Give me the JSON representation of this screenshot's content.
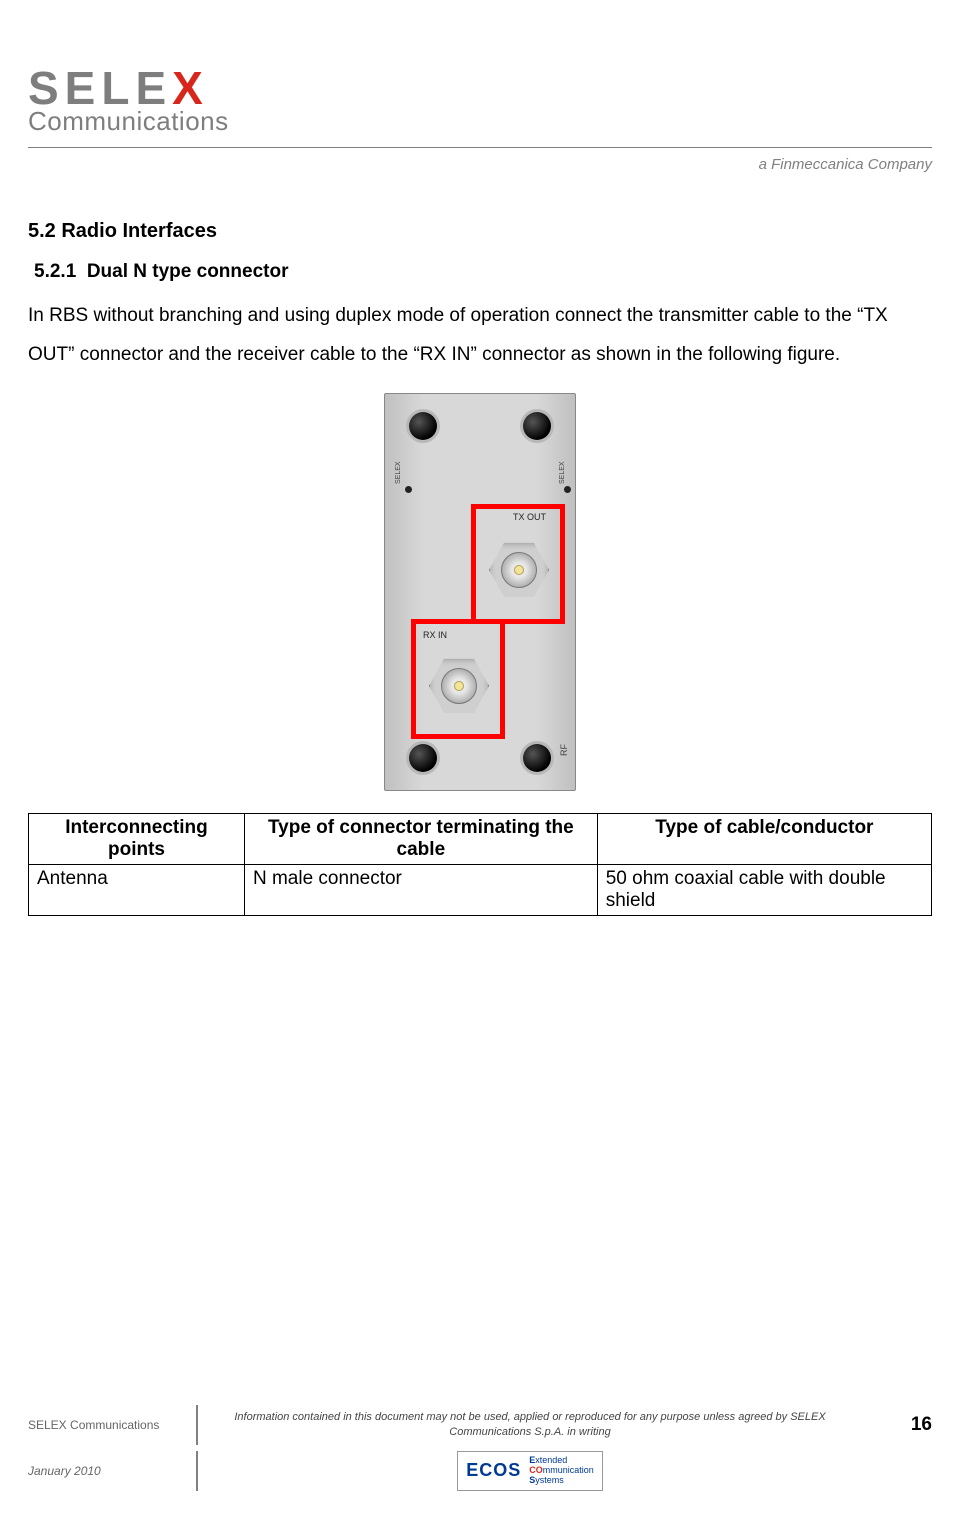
{
  "header": {
    "brand_main_pre": "SELE",
    "brand_main_x": "X",
    "brand_sub": "Communications",
    "tagline": "a Finmeccanica Company"
  },
  "section": {
    "num_title": "5.2 Radio Interfaces",
    "sub_num": "5.2.1",
    "sub_title": "Dual N type connector",
    "paragraph": "In RBS without branching and using duplex mode of operation connect the transmitter cable to the “TX OUT” connector and the receiver cable to the “RX IN” connector as shown in the following figure."
  },
  "figure": {
    "tx_label": "TX OUT",
    "rx_label": "RX IN",
    "rf_label": "RF",
    "side_brand": "SELEX",
    "highlight_color": "#ff0000",
    "panel_bg": "#d8d8d8"
  },
  "table": {
    "columns": [
      "Interconnecting points",
      "Type of connector terminating the cable",
      "Type of cable/conductor"
    ],
    "rows": [
      [
        "Antenna",
        "N male connector",
        "50 ohm coaxial cable with double shield"
      ]
    ]
  },
  "footer": {
    "org": "SELEX Communications",
    "notice": "Information contained in this document may not be used, applied or reproduced for any purpose unless agreed by SELEX Communications S.p.A. in writing",
    "page": "16",
    "date": "January 2010",
    "ecos_logo": "ECOS",
    "ecos_l1_e": "E",
    "ecos_l1_r": "xtended",
    "ecos_l2_co": "CO",
    "ecos_l2_r": "mmunication",
    "ecos_l3_e": "S",
    "ecos_l3_r": "ystems"
  }
}
